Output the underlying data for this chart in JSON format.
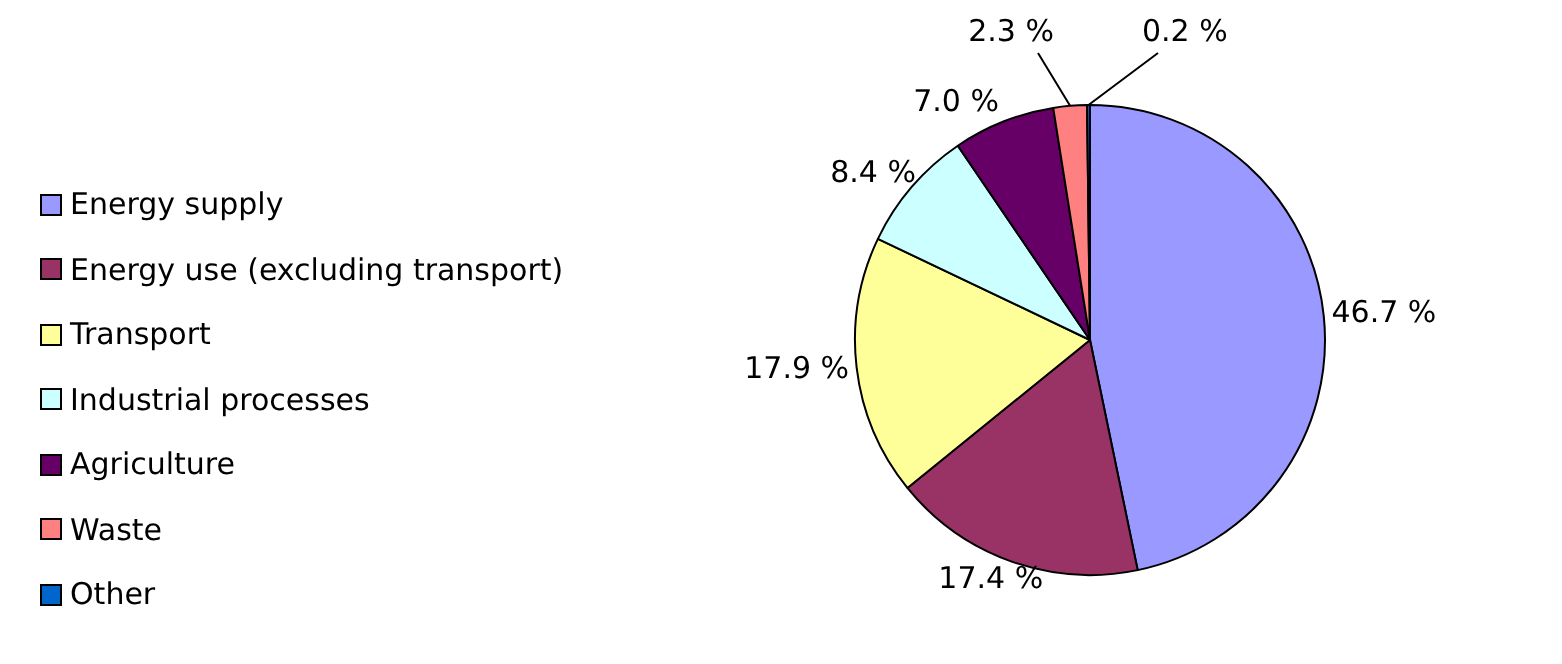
{
  "chart_data": {
    "type": "pie",
    "categories": [
      "Energy supply",
      "Energy use (excluding transport)",
      "Transport",
      "Industrial processes",
      "Agriculture",
      "Waste",
      "Other"
    ],
    "values": [
      46.7,
      17.4,
      17.9,
      8.4,
      7.0,
      2.3,
      0.2
    ],
    "colors": [
      "#9999ff",
      "#993366",
      "#ffff99",
      "#ccffff",
      "#660066",
      "#ff8080",
      "#0066cc"
    ],
    "value_labels": [
      "46.7 %",
      "17.4 %",
      "17.9 %",
      "8.4 %",
      "7.0 %",
      "2.3 %",
      "0.2 %"
    ],
    "legend": "left"
  }
}
